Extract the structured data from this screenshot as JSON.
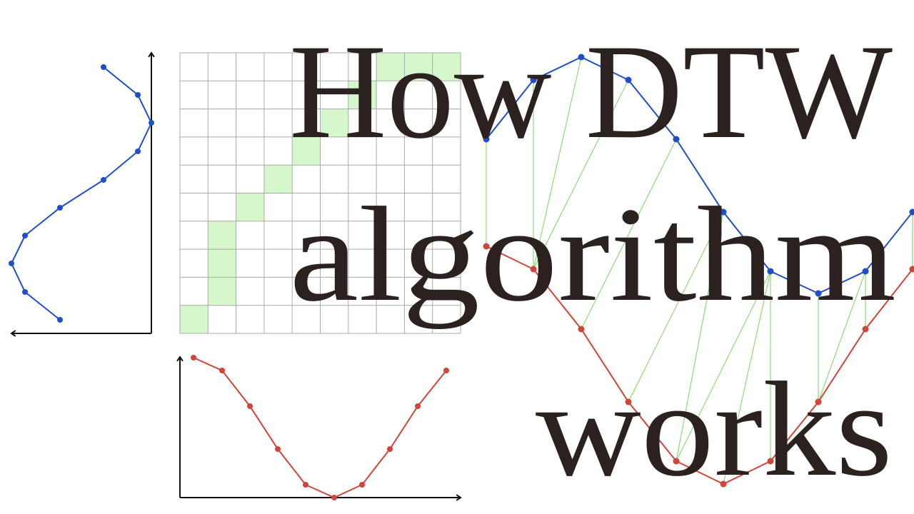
{
  "title": {
    "lines": [
      "How DTW",
      "algorithm",
      "works"
    ]
  }
}
